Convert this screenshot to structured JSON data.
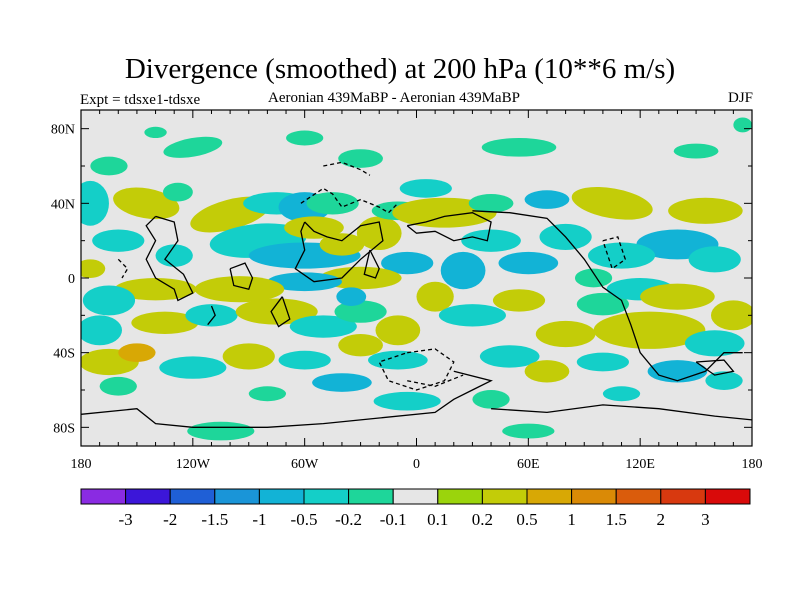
{
  "chart_data": {
    "type": "contour-map",
    "title": "Divergence (smoothed) at 200 hPa (10**6 m/s)",
    "subtitle_left": "Expt = tdsxe1-tdsxe",
    "subtitle_center": "Aeronian 439MaBP - Aeronian 439MaBP",
    "subtitle_right": "DJF",
    "x_ticks": [
      "180",
      "120W",
      "60W",
      "0",
      "60E",
      "120E",
      "180"
    ],
    "x_tick_values": [
      -180,
      -120,
      -60,
      0,
      60,
      120,
      180
    ],
    "y_ticks": [
      "80N",
      "40N",
      "0",
      "40S",
      "80S"
    ],
    "y_tick_values": [
      80,
      40,
      0,
      -40,
      -80
    ],
    "xlim": [
      -180,
      180
    ],
    "ylim": [
      -90,
      90
    ],
    "colorbar": {
      "levels": [
        "-3",
        "-2",
        "-1.5",
        "-1",
        "-0.5",
        "-0.2",
        "-0.1",
        "0.1",
        "0.2",
        "0.5",
        "1",
        "1.5",
        "2",
        "3"
      ],
      "colors": [
        "#8a2be2",
        "#3c16d9",
        "#1f5fd6",
        "#1a95d8",
        "#12b3d6",
        "#14cfc8",
        "#1ed69a",
        "#e6e6e6",
        "#9bd40c",
        "#c3cc08",
        "#d8a805",
        "#da8a06",
        "#da5c0c",
        "#d8390f",
        "#d90a0a"
      ]
    },
    "background_color": "#e6e6e6"
  }
}
